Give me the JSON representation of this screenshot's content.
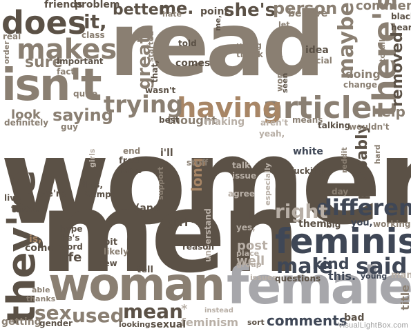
{
  "watermark": "VisualLightBox.com",
  "palette": {
    "dark": "#5b5146",
    "mid": "#8a7f72",
    "light": "#b8afa6",
    "tan": "#a88666",
    "slate": "#3f4756",
    "grey": "#a7a7ab"
  },
  "words": [
    {
      "text": "women",
      "color": "dark"
    },
    {
      "text": "men",
      "color": "dark"
    },
    {
      "text": "read",
      "color": "mid"
    },
    {
      "text": "female",
      "color": "grey"
    },
    {
      "text": "isn't",
      "color": "mid"
    },
    {
      "text": "woman",
      "color": "mid"
    },
    {
      "text": "feminist",
      "color": "slate"
    },
    {
      "text": "article",
      "color": "mid"
    },
    {
      "text": "having",
      "color": "tan"
    },
    {
      "text": "they're",
      "color": "dark"
    },
    {
      "text": "there's",
      "color": "mid"
    },
    {
      "text": "does",
      "color": "dark"
    },
    {
      "text": "makes",
      "color": "mid"
    },
    {
      "text": "different",
      "color": "slate"
    },
    {
      "text": "trying",
      "color": "mid"
    },
    {
      "text": "male",
      "color": "slate"
    },
    {
      "text": "said",
      "color": "slate"
    },
    {
      "text": "right",
      "color": "light"
    },
    {
      "text": "maybe",
      "color": "mid"
    },
    {
      "text": "removed",
      "color": "dark"
    },
    {
      "text": "great",
      "color": "mid"
    },
    {
      "text": "mean",
      "color": "dark"
    },
    {
      "text": "used",
      "color": "mid"
    },
    {
      "text": "sex",
      "color": "mid"
    },
    {
      "text": "probably",
      "color": "dark"
    },
    {
      "text": "she's",
      "color": "dark"
    },
    {
      "text": "person",
      "color": "mid"
    },
    {
      "text": "better",
      "color": "dark"
    },
    {
      "text": "me.",
      "color": "dark"
    },
    {
      "text": "it,",
      "color": "dark"
    },
    {
      "text": "sure",
      "color": "mid"
    },
    {
      "text": "saying",
      "color": "mid"
    },
    {
      "text": "kind",
      "color": "slate"
    },
    {
      "text": "comments",
      "color": "slate"
    },
    {
      "text": "help",
      "color": "mid"
    },
    {
      "text": "comment",
      "color": "mid"
    },
    {
      "text": "feminism",
      "color": "light"
    },
    {
      "text": "look",
      "color": "mid"
    },
    {
      "text": "doing",
      "color": "mid"
    },
    {
      "text": "thought",
      "color": "mid"
    },
    {
      "text": "making",
      "color": "light"
    },
    {
      "text": "post",
      "color": "light"
    },
    {
      "text": "well",
      "color": "light"
    },
    {
      "text": "life",
      "color": "dark"
    },
    {
      "text": "long",
      "color": "tan"
    },
    {
      "text": "girl",
      "color": "dark"
    },
    {
      "text": "this.",
      "color": "slate"
    },
    {
      "text": "sexual",
      "color": "dark"
    },
    {
      "text": "getting",
      "color": "mid"
    },
    {
      "text": "(and",
      "color": "dark"
    },
    {
      "text": "friends",
      "color": "dark"
    },
    {
      "text": "problem",
      "color": "dark"
    },
    {
      "text": "point",
      "color": "dark"
    },
    {
      "text": "believe",
      "color": "mid"
    },
    {
      "text": "comes",
      "color": "dark"
    },
    {
      "text": "told",
      "color": "dark"
    },
    {
      "text": "idea",
      "color": "dark"
    },
    {
      "text": "social",
      "color": "mid"
    },
    {
      "text": "using",
      "color": "mid"
    },
    {
      "text": "thank",
      "color": "mid"
    },
    {
      "text": "important",
      "color": "dark"
    },
    {
      "text": "fact",
      "color": "mid"
    },
    {
      "text": "class",
      "color": "mid"
    },
    {
      "text": "real",
      "color": "mid"
    },
    {
      "text": "order",
      "color": "mid"
    },
    {
      "text": "hate",
      "color": "mid"
    },
    {
      "text": "black",
      "color": "dark"
    },
    {
      "text": "hear",
      "color": "dark"
    },
    {
      "text": "totally",
      "color": "mid"
    },
    {
      "text": "change",
      "color": "mid"
    },
    {
      "text": "seen",
      "color": "dark"
    },
    {
      "text": "women.",
      "color": "mid"
    },
    {
      "text": "wasn't",
      "color": "dark"
    },
    {
      "text": "best",
      "color": "dark"
    },
    {
      "text": "quite",
      "color": "mid"
    },
    {
      "text": "definitely",
      "color": "mid"
    },
    {
      "text": "guy",
      "color": "mid"
    },
    {
      "text": "means",
      "color": "mid"
    },
    {
      "text": "talking",
      "color": "dark"
    },
    {
      "text": "wouldn't",
      "color": "mid"
    },
    {
      "text": "aren't",
      "color": "light"
    },
    {
      "text": "yeah,",
      "color": "light"
    },
    {
      "text": "white",
      "color": "slate"
    },
    {
      "text": "end",
      "color": "mid"
    },
    {
      "text": "free",
      "color": "dark"
    },
    {
      "text": "rape",
      "color": "dark"
    },
    {
      "text": "i'll",
      "color": "dark"
    },
    {
      "text": "stuff",
      "color": "mid"
    },
    {
      "text": "talk",
      "color": "light"
    },
    {
      "text": "issue",
      "color": "light"
    },
    {
      "text": "especially",
      "color": "light"
    },
    {
      "text": "fucking",
      "color": "dark"
    },
    {
      "text": "reddit",
      "color": "mid"
    },
    {
      "text": "hard",
      "color": "mid"
    },
    {
      "text": "day",
      "color": "mid"
    },
    {
      "text": "live",
      "color": "dark"
    },
    {
      "text": "we're",
      "color": "dark"
    },
    {
      "text": "that.",
      "color": "dark"
    },
    {
      "text": "girls",
      "color": "light"
    },
    {
      "text": "this,",
      "color": "dark"
    },
    {
      "text": "&amp;",
      "color": "dark"
    },
    {
      "text": "support",
      "color": "mid"
    },
    {
      "text": "agree",
      "color": "light"
    },
    {
      "text": "them.",
      "color": "dark"
    },
    {
      "text": "big",
      "color": "dark"
    },
    {
      "text": "you,",
      "color": "slate"
    },
    {
      "text": "working",
      "color": "mid"
    },
    {
      "text": "hope",
      "color": "dark"
    },
    {
      "text": "he's",
      "color": "dark"
    },
    {
      "text": "word",
      "color": "dark"
    },
    {
      "text": "is,",
      "color": "tan"
    },
    {
      "text": "come",
      "color": "dark"
    },
    {
      "text": "yes,",
      "color": "light"
    },
    {
      "text": "understand",
      "color": "light"
    },
    {
      "text": "reason",
      "color": "dark"
    },
    {
      "text": "bit",
      "color": "dark"
    },
    {
      "text": "likely",
      "color": "mid"
    },
    {
      "text": "new",
      "color": "dark"
    },
    {
      "text": "tell",
      "color": "dark"
    },
    {
      "text": "place",
      "color": "light"
    },
    {
      "text": "group",
      "color": "light"
    },
    {
      "text": "able",
      "color": "mid"
    },
    {
      "text": "thanks",
      "color": "mid"
    },
    {
      "text": "gender",
      "color": "dark"
    },
    {
      "text": "looking",
      "color": "dark"
    },
    {
      "text": "issues",
      "color": "light"
    },
    {
      "text": "questions",
      "color": "dark"
    },
    {
      "text": "young",
      "color": "slate"
    },
    {
      "text": "man",
      "color": "light"
    },
    {
      "text": "sort",
      "color": "dark"
    },
    {
      "text": "instead",
      "color": "light"
    },
    {
      "text": "title",
      "color": "mid"
    },
    {
      "text": "started",
      "color": "mid"
    },
    {
      "text": "that,",
      "color": "dark"
    },
    {
      "text": "let",
      "color": "mid"
    },
    {
      "text": "me,",
      "color": "dark"
    },
    {
      "text": "*",
      "color": "light"
    },
    {
      "text": "~",
      "color": "light"
    },
    {
      "text": "bad",
      "color": "dark"
    }
  ]
}
